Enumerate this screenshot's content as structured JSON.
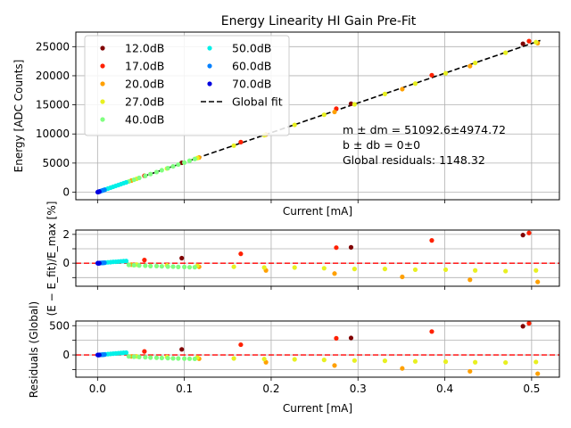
{
  "chart_data": [
    {
      "type": "scatter",
      "title": "Energy Linearity HI Gain Pre-Fit",
      "xlabel": "Current [mA]",
      "ylabel": "Energy [ADC Counts]",
      "xlim": [
        -0.025,
        0.532
      ],
      "ylim": [
        -1300,
        27500
      ],
      "xticks": [
        0.0,
        0.1,
        0.2,
        0.3,
        0.4,
        0.5
      ],
      "yticks": [
        0,
        5000,
        10000,
        15000,
        20000,
        25000
      ],
      "ytick_labels": [
        "0",
        "5000",
        "10000",
        "15000",
        "20000",
        "25000"
      ],
      "grid": true,
      "legend_position": "top-left",
      "legend": [
        {
          "label": "12.0dB",
          "color": "#800000"
        },
        {
          "label": "17.0dB",
          "color": "#ff2000"
        },
        {
          "label": "20.0dB",
          "color": "#ffa000"
        },
        {
          "label": "27.0dB",
          "color": "#e8f020"
        },
        {
          "label": "40.0dB",
          "color": "#80ff80"
        },
        {
          "label": "50.0dB",
          "color": "#00f0e8"
        },
        {
          "label": "60.0dB",
          "color": "#0080ff"
        },
        {
          "label": "70.0dB",
          "color": "#0000e0"
        },
        {
          "label": "Global fit",
          "color": "#000000",
          "style": "dashed"
        }
      ],
      "annotations": [
        "m ± dm = 51092.6±4974.72",
        "b ± db = 0±0",
        "Global residuals: 1148.32"
      ],
      "fit": {
        "slope": 51092.6,
        "intercept": 0
      },
      "series": [
        {
          "name": "12.0dB",
          "color": "#800000",
          "x": [
            0.097,
            0.292,
            0.49
          ],
          "y": [
            5050,
            15200,
            25500
          ]
        },
        {
          "name": "17.0dB",
          "color": "#ff2000",
          "x": [
            0.054,
            0.165,
            0.275,
            0.385,
            0.497
          ],
          "y": [
            2820,
            8600,
            14350,
            20100,
            25950
          ]
        },
        {
          "name": "20.0dB",
          "color": "#ffa000",
          "x": [
            0.039,
            0.117,
            0.194,
            0.273,
            0.351,
            0.429,
            0.507
          ],
          "y": [
            1990,
            5960,
            9900,
            13780,
            17700,
            21650,
            25600
          ]
        },
        {
          "name": "27.0dB",
          "color": "#e8f020",
          "x": [
            0.045,
            0.08,
            0.115,
            0.157,
            0.192,
            0.227,
            0.261,
            0.296,
            0.331,
            0.366,
            0.401,
            0.435,
            0.47,
            0.505
          ],
          "y": [
            2290,
            4070,
            5860,
            8000,
            9780,
            11560,
            13300,
            15090,
            16870,
            18650,
            20430,
            22200,
            23960,
            25780
          ]
        },
        {
          "name": "40.0dB",
          "color": "#80ff80",
          "x": [
            0.036,
            0.042,
            0.048,
            0.055,
            0.061,
            0.068,
            0.074,
            0.081,
            0.087,
            0.093,
            0.1,
            0.106,
            0.112
          ],
          "y": [
            1830,
            2140,
            2450,
            2800,
            3110,
            3460,
            3770,
            4120,
            4430,
            4740,
            5090,
            5400,
            5710
          ]
        },
        {
          "name": "50.0dB",
          "color": "#00f0e8",
          "x": [
            0.006,
            0.009,
            0.012,
            0.015,
            0.018,
            0.021,
            0.024,
            0.027,
            0.03,
            0.033
          ],
          "y": [
            310,
            460,
            615,
            770,
            925,
            1080,
            1230,
            1385,
            1540,
            1690
          ]
        },
        {
          "name": "60.0dB",
          "color": "#0080ff",
          "x": [
            0.001,
            0.002,
            0.003,
            0.004,
            0.005,
            0.006,
            0.007,
            0.008
          ],
          "y": [
            50,
            100,
            150,
            200,
            255,
            305,
            355,
            405
          ]
        },
        {
          "name": "70.0dB",
          "color": "#0000e0",
          "x": [
            0.0002,
            0.0005,
            0.0008,
            0.0011,
            0.0014,
            0.0017,
            0.002
          ],
          "y": [
            10,
            25,
            40,
            55,
            70,
            85,
            100
          ]
        }
      ]
    },
    {
      "type": "scatter",
      "title": "",
      "xlabel": "",
      "ylabel": "(E − E_fit)/E_max [%]",
      "xlim": [
        -0.025,
        0.532
      ],
      "ylim": [
        -1.6,
        2.3
      ],
      "yticks": [
        -1,
        0,
        1,
        2
      ],
      "ytick_labels": [
        "",
        "0",
        "",
        "2"
      ],
      "grid": true,
      "reference_line": {
        "y": 0,
        "color": "#ff0000",
        "style": "dashed"
      },
      "series": [
        {
          "name": "12.0dB",
          "color": "#800000",
          "x": [
            0.097,
            0.292,
            0.49
          ],
          "y": [
            0.35,
            1.1,
            1.95
          ]
        },
        {
          "name": "17.0dB",
          "color": "#ff2000",
          "x": [
            0.054,
            0.165,
            0.275,
            0.385,
            0.497
          ],
          "y": [
            0.22,
            0.65,
            1.08,
            1.58,
            2.1
          ]
        },
        {
          "name": "20.0dB",
          "color": "#ffa000",
          "x": [
            0.039,
            0.117,
            0.194,
            0.273,
            0.351,
            0.429,
            0.507
          ],
          "y": [
            -0.1,
            -0.25,
            -0.5,
            -0.72,
            -0.95,
            -1.15,
            -1.3
          ]
        },
        {
          "name": "27.0dB",
          "color": "#e8f020",
          "x": [
            0.045,
            0.08,
            0.115,
            0.157,
            0.192,
            0.227,
            0.261,
            0.296,
            0.331,
            0.366,
            0.401,
            0.435,
            0.47,
            0.505
          ],
          "y": [
            -0.1,
            -0.15,
            -0.18,
            -0.25,
            -0.3,
            -0.3,
            -0.35,
            -0.4,
            -0.4,
            -0.45,
            -0.45,
            -0.5,
            -0.55,
            -0.5
          ]
        },
        {
          "name": "40.0dB",
          "color": "#80ff80",
          "x": [
            0.036,
            0.042,
            0.048,
            0.055,
            0.061,
            0.068,
            0.074,
            0.081,
            0.087,
            0.093,
            0.1,
            0.106,
            0.112
          ],
          "y": [
            -0.12,
            -0.14,
            -0.16,
            -0.18,
            -0.2,
            -0.2,
            -0.22,
            -0.24,
            -0.24,
            -0.26,
            -0.26,
            -0.28,
            -0.28
          ]
        },
        {
          "name": "50.0dB",
          "color": "#00f0e8",
          "x": [
            0.006,
            0.009,
            0.012,
            0.015,
            0.018,
            0.021,
            0.024,
            0.027,
            0.03,
            0.033
          ],
          "y": [
            0.02,
            0.04,
            0.06,
            0.07,
            0.09,
            0.1,
            0.11,
            0.13,
            0.14,
            0.15
          ]
        },
        {
          "name": "60.0dB",
          "color": "#0080ff",
          "x": [
            0.001,
            0.002,
            0.003,
            0.004,
            0.005,
            0.006,
            0.007,
            0.008
          ],
          "y": [
            0.0,
            0.01,
            0.01,
            0.02,
            0.02,
            0.02,
            0.03,
            0.03
          ]
        },
        {
          "name": "70.0dB",
          "color": "#0000e0",
          "x": [
            0.0002,
            0.0005,
            0.0008,
            0.0011,
            0.0014,
            0.0017,
            0.002
          ],
          "y": [
            0.0,
            0.0,
            0.0,
            0.0,
            0.0,
            0.0,
            0.0
          ]
        }
      ]
    },
    {
      "type": "scatter",
      "title": "",
      "xlabel": "Current [mA]",
      "ylabel": "Residuals (Global)",
      "xlim": [
        -0.025,
        0.532
      ],
      "ylim": [
        -380,
        580
      ],
      "xticks": [
        0.0,
        0.1,
        0.2,
        0.3,
        0.4,
        0.5
      ],
      "xtick_labels": [
        "0.0",
        "0.1",
        "0.2",
        "0.3",
        "0.4",
        "0.5"
      ],
      "yticks": [
        -250,
        0,
        250,
        500
      ],
      "ytick_labels": [
        "",
        "0",
        "",
        "500"
      ],
      "grid": true,
      "reference_line": {
        "y": 0,
        "color": "#ff0000",
        "style": "dashed"
      },
      "series": [
        {
          "name": "12.0dB",
          "color": "#800000",
          "x": [
            0.097,
            0.292,
            0.49
          ],
          "y": [
            95,
            290,
            490
          ]
        },
        {
          "name": "17.0dB",
          "color": "#ff2000",
          "x": [
            0.054,
            0.165,
            0.275,
            0.385,
            0.497
          ],
          "y": [
            60,
            175,
            285,
            400,
            540
          ]
        },
        {
          "name": "20.0dB",
          "color": "#ffa000",
          "x": [
            0.039,
            0.117,
            0.194,
            0.273,
            0.351,
            0.429,
            0.507
          ],
          "y": [
            -25,
            -65,
            -125,
            -180,
            -230,
            -280,
            -320
          ]
        },
        {
          "name": "27.0dB",
          "color": "#e8f020",
          "x": [
            0.045,
            0.08,
            0.115,
            0.157,
            0.192,
            0.227,
            0.261,
            0.296,
            0.331,
            0.366,
            0.401,
            0.435,
            0.47,
            0.505
          ],
          "y": [
            -25,
            -35,
            -45,
            -60,
            -70,
            -75,
            -85,
            -95,
            -100,
            -110,
            -115,
            -125,
            -130,
            -120
          ]
        },
        {
          "name": "40.0dB",
          "color": "#80ff80",
          "x": [
            0.036,
            0.042,
            0.048,
            0.055,
            0.061,
            0.068,
            0.074,
            0.081,
            0.087,
            0.093,
            0.1,
            0.106,
            0.112
          ],
          "y": [
            -25,
            -30,
            -35,
            -40,
            -45,
            -48,
            -52,
            -55,
            -58,
            -60,
            -62,
            -65,
            -67
          ]
        },
        {
          "name": "50.0dB",
          "color": "#00f0e8",
          "x": [
            0.006,
            0.009,
            0.012,
            0.015,
            0.018,
            0.021,
            0.024,
            0.027,
            0.03,
            0.033
          ],
          "y": [
            5,
            10,
            14,
            18,
            22,
            26,
            29,
            33,
            37,
            40
          ]
        },
        {
          "name": "60.0dB",
          "color": "#0080ff",
          "x": [
            0.001,
            0.002,
            0.003,
            0.004,
            0.005,
            0.006,
            0.007,
            0.008
          ],
          "y": [
            0,
            1,
            2,
            3,
            4,
            5,
            6,
            7
          ]
        },
        {
          "name": "70.0dB",
          "color": "#0000e0",
          "x": [
            0.0002,
            0.0005,
            0.0008,
            0.0011,
            0.0014,
            0.0017,
            0.002
          ],
          "y": [
            0,
            0,
            0,
            0,
            0,
            0,
            0
          ]
        }
      ]
    }
  ]
}
